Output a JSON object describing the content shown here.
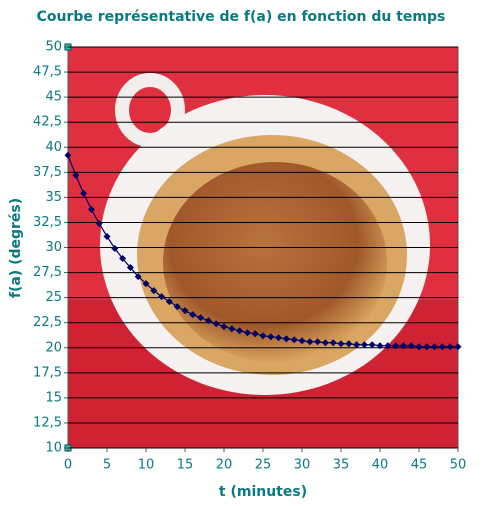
{
  "chart_data": {
    "type": "line",
    "title": "Courbe représentative de f(a) en fonction du temps",
    "x_label": "t (minutes)",
    "y_label": "f(a) (degrés)",
    "color": "#000066",
    "grid": true,
    "x": [
      0,
      1,
      2,
      3,
      4,
      5,
      6,
      7,
      8,
      9,
      10,
      11,
      12,
      13,
      14,
      15,
      16,
      17,
      18,
      19,
      20,
      21,
      22,
      23,
      24,
      25,
      26,
      27,
      28,
      29,
      30,
      31,
      32,
      33,
      34,
      35,
      36,
      37,
      38,
      39,
      40,
      41,
      42,
      43,
      44,
      45,
      46,
      47,
      48,
      49,
      50
    ],
    "values": [
      39.2,
      37.2,
      35.4,
      33.8,
      32.4,
      31.1,
      29.9,
      28.9,
      28.0,
      27.1,
      26.4,
      25.7,
      25.1,
      24.6,
      24.1,
      23.7,
      23.3,
      23.0,
      22.7,
      22.4,
      22.1,
      21.9,
      21.7,
      21.5,
      21.4,
      21.2,
      21.1,
      21.0,
      20.9,
      20.8,
      20.7,
      20.6,
      20.6,
      20.5,
      20.5,
      20.4,
      20.4,
      20.3,
      20.3,
      20.3,
      20.2,
      20.2,
      20.2,
      20.2,
      20.2,
      20.1,
      20.1,
      20.1,
      20.1,
      20.1,
      20.1
    ],
    "xlim": [
      0,
      50
    ],
    "xticks": [
      0,
      5,
      10,
      15,
      20,
      25,
      30,
      35,
      40,
      45,
      50
    ],
    "ylim": [
      10,
      50
    ],
    "yticks": [
      10,
      {
        "value": 12.5,
        "label": "12,5"
      },
      15,
      {
        "value": 17.5,
        "label": "17,5"
      },
      20,
      {
        "value": 22.5,
        "label": "22,5"
      },
      25,
      {
        "value": 27.5,
        "label": "27,5"
      },
      30,
      {
        "value": 32.5,
        "label": "32,5"
      },
      35,
      {
        "value": 37.5,
        "label": "37,5"
      },
      40,
      {
        "value": 42.5,
        "label": "42,5"
      },
      45,
      {
        "value": 47.5,
        "label": "47,5"
      },
      50
    ]
  }
}
